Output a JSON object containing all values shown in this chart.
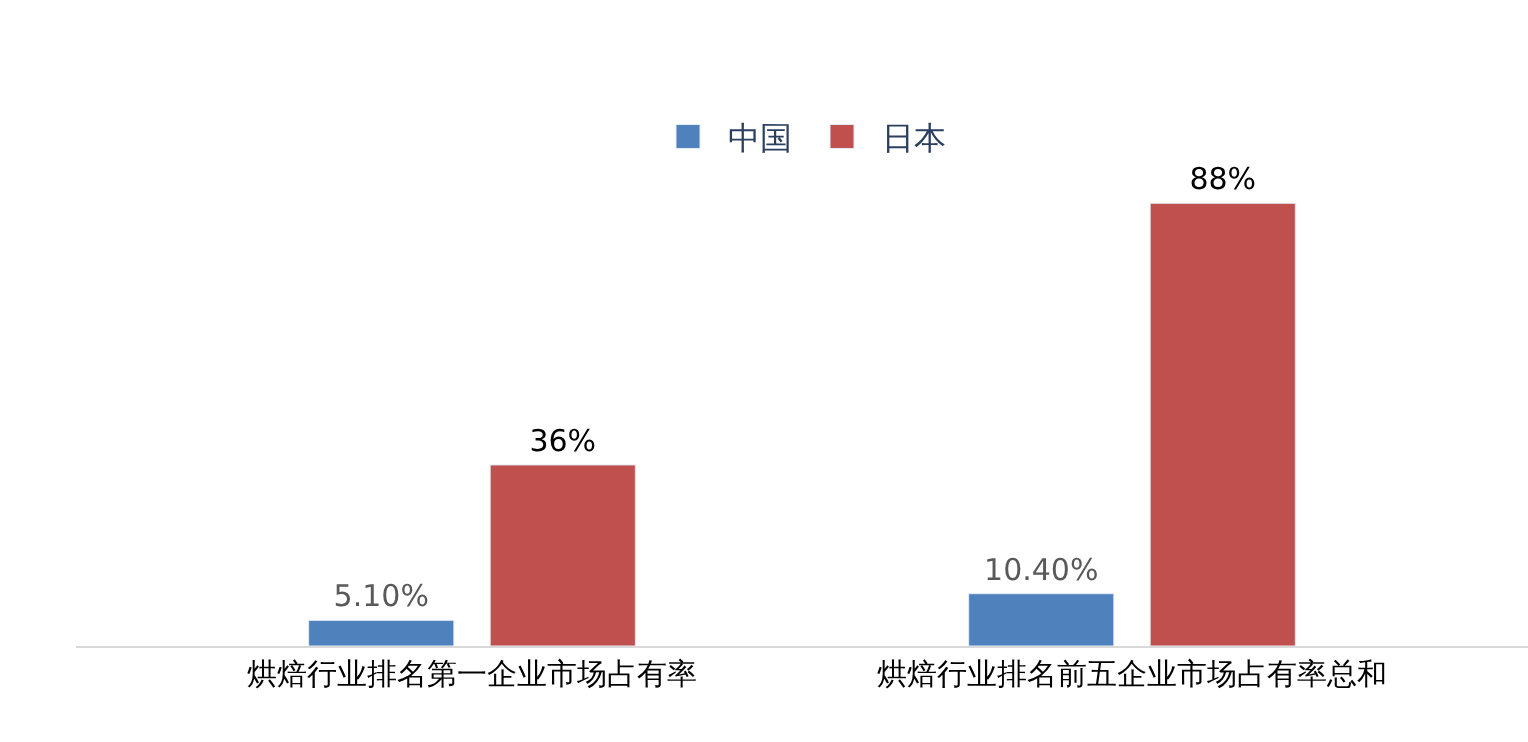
{
  "chart_data": {
    "type": "bar",
    "categories": [
      "烘焙行业排名第一企业市场占有率",
      "烘焙行业排名前五企业市场占有率总和"
    ],
    "series": [
      {
        "name": "中国",
        "color": "#4f81bd",
        "values": [
          5.1,
          10.4
        ],
        "value_labels": [
          "5.10%",
          "10.40%"
        ]
      },
      {
        "name": "日本",
        "color": "#c0504d",
        "values": [
          36,
          88
        ],
        "value_labels": [
          "36%",
          "88%"
        ]
      }
    ],
    "tick_labels": "x",
    "legend": "top"
  }
}
